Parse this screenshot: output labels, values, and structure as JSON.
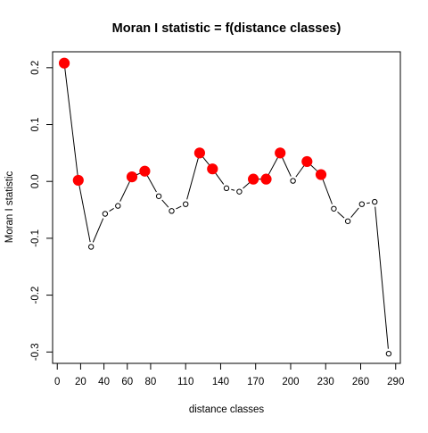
{
  "chart_data": {
    "type": "scatter",
    "title": "Moran I statistic = f(distance classes)",
    "xlabel": "distance classes",
    "ylabel": "Moran I statistic",
    "x_tick_labels": [
      "0",
      "20",
      "40",
      "60",
      "80",
      "110",
      "140",
      "170",
      "200",
      "230",
      "260",
      "290"
    ],
    "x_tick_values": [
      0,
      20,
      40,
      60,
      80,
      110,
      140,
      170,
      200,
      230,
      260,
      290
    ],
    "y_ticks": [
      -0.3,
      -0.2,
      -0.1,
      0.0,
      0.1,
      0.2
    ],
    "y_tick_labels": [
      "-0.3",
      "-0.2",
      "-0.1",
      "0.0",
      "0.1",
      "0.2"
    ],
    "xlim": [
      -4,
      294
    ],
    "ylim": [
      -0.32,
      0.228
    ],
    "grid": false,
    "legend": "none",
    "connect_points": true,
    "colors": {
      "significant": "#ff0000",
      "line": "#000000",
      "open_point": "#000000"
    },
    "points": [
      {
        "x": 6,
        "y": 0.208,
        "significant": true
      },
      {
        "x": 18,
        "y": 0.002,
        "significant": true
      },
      {
        "x": 29,
        "y": -0.115,
        "significant": false
      },
      {
        "x": 41,
        "y": -0.057,
        "significant": false
      },
      {
        "x": 52,
        "y": -0.043,
        "significant": false
      },
      {
        "x": 64,
        "y": 0.008,
        "significant": true
      },
      {
        "x": 75,
        "y": 0.018,
        "significant": true
      },
      {
        "x": 87,
        "y": -0.026,
        "significant": false
      },
      {
        "x": 98,
        "y": -0.052,
        "significant": false
      },
      {
        "x": 110,
        "y": -0.04,
        "significant": false
      },
      {
        "x": 122,
        "y": 0.05,
        "significant": true
      },
      {
        "x": 133,
        "y": 0.022,
        "significant": true
      },
      {
        "x": 145,
        "y": -0.012,
        "significant": false
      },
      {
        "x": 156,
        "y": -0.018,
        "significant": false
      },
      {
        "x": 168,
        "y": 0.004,
        "significant": true
      },
      {
        "x": 179,
        "y": 0.004,
        "significant": true
      },
      {
        "x": 191,
        "y": 0.05,
        "significant": true
      },
      {
        "x": 202,
        "y": 0.001,
        "significant": false
      },
      {
        "x": 214,
        "y": 0.035,
        "significant": true
      },
      {
        "x": 226,
        "y": 0.012,
        "significant": true
      },
      {
        "x": 237,
        "y": -0.048,
        "significant": false
      },
      {
        "x": 249,
        "y": -0.07,
        "significant": false
      },
      {
        "x": 261,
        "y": -0.04,
        "significant": false
      },
      {
        "x": 272,
        "y": -0.036,
        "significant": false
      },
      {
        "x": 284,
        "y": -0.303,
        "significant": false
      }
    ]
  }
}
